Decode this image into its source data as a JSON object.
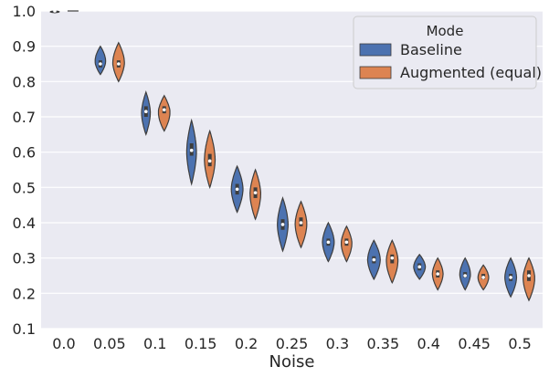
{
  "chart_data": {
    "type": "violin",
    "xlabel": "Noise",
    "ylabel": "",
    "ylim": [
      0.1,
      1.0
    ],
    "yticks": [
      "0.1",
      "0.2",
      "0.3",
      "0.4",
      "0.5",
      "0.6",
      "0.7",
      "0.8",
      "0.9",
      "1.0"
    ],
    "categories": [
      "0.0",
      "0.05",
      "0.1",
      "0.15",
      "0.2",
      "0.25",
      "0.3",
      "0.35",
      "0.4",
      "0.45",
      "0.5"
    ],
    "grid": true,
    "legend": {
      "title": "Mode",
      "placement": "top-right"
    },
    "series": [
      {
        "name": "Baseline",
        "color": "#4c72b0",
        "violins": [
          {
            "min": 0.995,
            "max": 1.0,
            "q1": 0.998,
            "median": 1.0,
            "q3": 1.0,
            "width": 0.5
          },
          {
            "min": 0.82,
            "max": 0.9,
            "q1": 0.84,
            "median": 0.85,
            "q3": 0.86,
            "width": 0.55
          },
          {
            "min": 0.65,
            "max": 0.77,
            "q1": 0.7,
            "median": 0.715,
            "q3": 0.73,
            "width": 0.45
          },
          {
            "min": 0.51,
            "max": 0.69,
            "q1": 0.59,
            "median": 0.605,
            "q3": 0.625,
            "width": 0.5
          },
          {
            "min": 0.43,
            "max": 0.56,
            "q1": 0.48,
            "median": 0.495,
            "q3": 0.51,
            "width": 0.6
          },
          {
            "min": 0.32,
            "max": 0.47,
            "q1": 0.38,
            "median": 0.395,
            "q3": 0.41,
            "width": 0.55
          },
          {
            "min": 0.29,
            "max": 0.4,
            "q1": 0.335,
            "median": 0.345,
            "q3": 0.355,
            "width": 0.6
          },
          {
            "min": 0.24,
            "max": 0.35,
            "q1": 0.285,
            "median": 0.295,
            "q3": 0.305,
            "width": 0.65
          },
          {
            "min": 0.24,
            "max": 0.31,
            "q1": 0.265,
            "median": 0.275,
            "q3": 0.285,
            "width": 0.6
          },
          {
            "min": 0.21,
            "max": 0.3,
            "q1": 0.245,
            "median": 0.25,
            "q3": 0.26,
            "width": 0.55
          },
          {
            "min": 0.19,
            "max": 0.3,
            "q1": 0.235,
            "median": 0.245,
            "q3": 0.255,
            "width": 0.6
          }
        ]
      },
      {
        "name": "Augmented (equal)",
        "color": "#dd8452",
        "violins": [
          {
            "min": 1.0,
            "max": 1.0,
            "q1": 1.0,
            "median": 1.0,
            "q3": 1.0,
            "width": 0.0
          },
          {
            "min": 0.8,
            "max": 0.91,
            "q1": 0.84,
            "median": 0.85,
            "q3": 0.86,
            "width": 0.6
          },
          {
            "min": 0.66,
            "max": 0.76,
            "q1": 0.71,
            "median": 0.72,
            "q3": 0.73,
            "width": 0.6
          },
          {
            "min": 0.5,
            "max": 0.66,
            "q1": 0.56,
            "median": 0.575,
            "q3": 0.595,
            "width": 0.55
          },
          {
            "min": 0.41,
            "max": 0.55,
            "q1": 0.47,
            "median": 0.485,
            "q3": 0.5,
            "width": 0.55
          },
          {
            "min": 0.33,
            "max": 0.46,
            "q1": 0.39,
            "median": 0.4,
            "q3": 0.415,
            "width": 0.6
          },
          {
            "min": 0.29,
            "max": 0.39,
            "q1": 0.335,
            "median": 0.345,
            "q3": 0.355,
            "width": 0.55
          },
          {
            "min": 0.23,
            "max": 0.35,
            "q1": 0.285,
            "median": 0.3,
            "q3": 0.31,
            "width": 0.6
          },
          {
            "min": 0.21,
            "max": 0.3,
            "q1": 0.245,
            "median": 0.255,
            "q3": 0.265,
            "width": 0.55
          },
          {
            "min": 0.21,
            "max": 0.28,
            "q1": 0.24,
            "median": 0.245,
            "q3": 0.255,
            "width": 0.55
          },
          {
            "min": 0.18,
            "max": 0.3,
            "q1": 0.235,
            "median": 0.25,
            "q3": 0.265,
            "width": 0.6
          }
        ]
      }
    ]
  }
}
